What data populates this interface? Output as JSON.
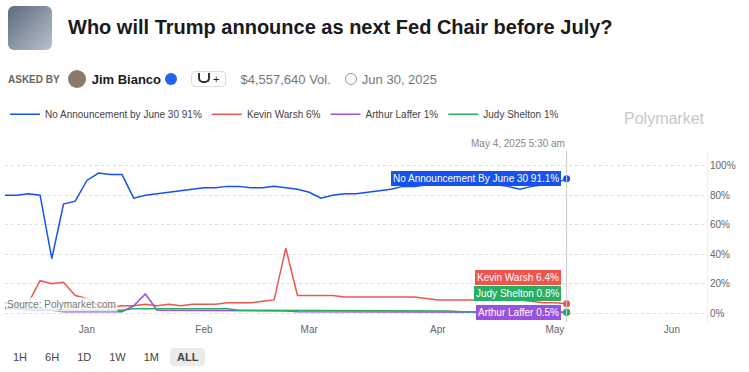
{
  "header": {
    "title": "Who will Trump announce as next Fed Chair before July?",
    "asked_by": "ASKED BY",
    "author": "Jim Bianco",
    "trophy": "+",
    "volume": "$4,557,640 Vol.",
    "date": "Jun 30, 2025",
    "brand": "Polymarket"
  },
  "footer": {
    "ranges": [
      "1H",
      "6H",
      "1D",
      "1W",
      "1M",
      "ALL"
    ],
    "active": "ALL"
  },
  "chart_data": {
    "type": "line",
    "hover_time": "May 4, 2025 5:30 am",
    "source": "Source: Polymarket.com",
    "categories": [
      null,
      null,
      null,
      null,
      null,
      null,
      null,
      "Jan",
      null,
      null,
      null,
      null,
      null,
      null,
      null,
      null,
      null,
      "Feb",
      null,
      null,
      null,
      null,
      null,
      null,
      null,
      null,
      "Mar",
      null,
      null,
      null,
      null,
      null,
      null,
      null,
      null,
      null,
      null,
      "Apr",
      null,
      null,
      null,
      null,
      null,
      null,
      null,
      null,
      null,
      "May",
      null,
      null,
      null,
      null,
      null,
      null,
      null,
      null,
      null,
      "Jun",
      null,
      null,
      null
    ],
    "series": [
      {
        "name": "No Announcement by June 30 91%",
        "color": "#1652f0",
        "end_label": "No Announcement By June 30 91.1%",
        "values": [
          80,
          80,
          81,
          80,
          37,
          74,
          76,
          90,
          95,
          94,
          94,
          78,
          80,
          81,
          82,
          83,
          84,
          85,
          85,
          86,
          86,
          85,
          85,
          86,
          85,
          84,
          82,
          78,
          80,
          81,
          81,
          82,
          83,
          84,
          86,
          86,
          87,
          87,
          87,
          87,
          87,
          88,
          87,
          86,
          84,
          86,
          87,
          88,
          91.1,
          null,
          null,
          null,
          null,
          null,
          null,
          null,
          null,
          null,
          null,
          null,
          null
        ]
      },
      {
        "name": "Kevin Warsh 6%",
        "color": "#f0544f",
        "end_label": "Kevin Warsh 6.4%",
        "values": [
          7,
          6,
          7,
          22,
          20,
          21,
          12,
          10,
          5,
          4,
          5,
          5,
          6,
          5,
          6,
          5,
          6,
          6,
          6,
          7,
          7,
          7,
          8,
          9,
          44,
          12,
          12,
          12,
          12,
          11,
          11,
          11,
          11,
          11,
          11,
          11,
          10,
          9,
          9,
          9,
          9,
          10,
          10,
          10,
          9,
          8,
          7,
          7,
          6.4,
          null,
          null,
          null,
          null,
          null,
          null,
          null,
          null,
          null,
          null,
          null,
          null
        ]
      },
      {
        "name": "Arthur Laffer 1%",
        "color": "#9b51e0",
        "end_label": "Arthur Laffer 0.5%",
        "values": [
          4,
          3,
          2,
          2,
          2,
          1,
          1,
          1,
          1,
          1,
          1,
          5,
          13,
          2,
          2,
          2,
          1.5,
          1.5,
          1.5,
          1.5,
          1.5,
          1.5,
          1.5,
          1.5,
          1.5,
          1,
          1,
          1,
          1,
          1,
          1,
          1,
          1,
          1,
          1,
          1,
          1,
          1,
          1,
          1,
          1,
          1,
          1,
          1,
          1,
          0.5,
          0.5,
          0.5,
          0.5,
          null,
          null,
          null,
          null,
          null,
          null,
          null,
          null,
          null,
          null,
          null,
          null
        ]
      },
      {
        "name": "Judy Shelton 1%",
        "color": "#27ae60",
        "end_label": "Judy Shelton 0.8%",
        "values": [
          3,
          3,
          3,
          3,
          2,
          2,
          2,
          2,
          2,
          2,
          2,
          3,
          3,
          3,
          3,
          3,
          3,
          3,
          3,
          3,
          2,
          2,
          2,
          2,
          2,
          2,
          2,
          2,
          2,
          2,
          1.5,
          1.5,
          1.5,
          1.5,
          1.5,
          1.5,
          1.5,
          1.5,
          1.5,
          1,
          1,
          1,
          1,
          1,
          1,
          1,
          1,
          1,
          0.8,
          null,
          null,
          null,
          null,
          null,
          null,
          null,
          null,
          null,
          null,
          null,
          null
        ]
      }
    ],
    "ylim": [
      -6,
      110
    ],
    "yticks": [
      {
        "value": 0,
        "label": "0%"
      },
      {
        "value": 20,
        "label": "20%"
      },
      {
        "value": 40,
        "label": "40%"
      },
      {
        "value": 60,
        "label": "60%"
      },
      {
        "value": 80,
        "label": "80%"
      },
      {
        "value": 100,
        "label": "100%"
      }
    ],
    "grid": true,
    "legend": "top"
  }
}
